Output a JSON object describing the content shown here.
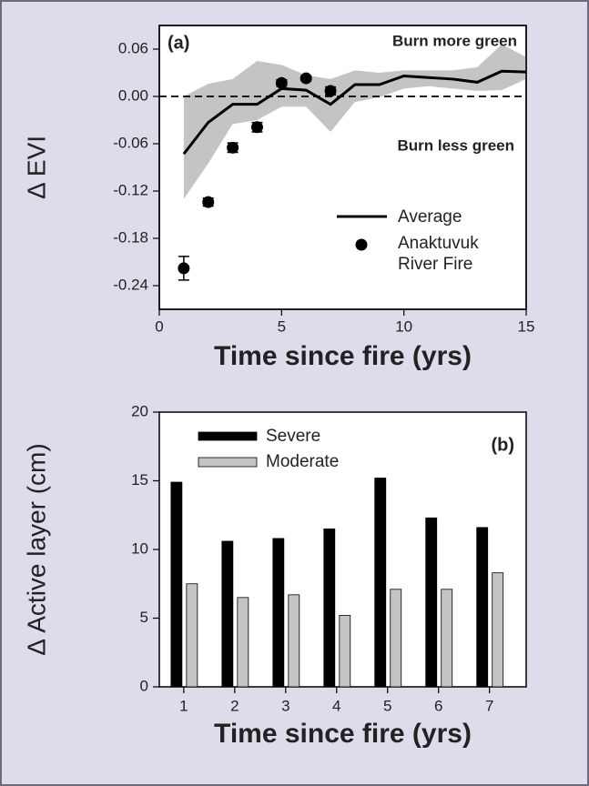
{
  "chart_data": [
    {
      "type": "line",
      "panel_label": "(a)",
      "annotations": [
        "Burn more green",
        "Burn less green"
      ],
      "x_label": "Time since fire (yrs)",
      "y_label": "Δ EVI",
      "xlim": [
        0,
        15
      ],
      "ylim": [
        -0.27,
        0.09
      ],
      "xticks": [
        0,
        5,
        10,
        15
      ],
      "yticks": [
        0.06,
        {
          "value": 0,
          "label": "0.00"
        },
        -0.06,
        -0.12,
        -0.18,
        -0.24
      ],
      "hline": 0,
      "band": {
        "color": "#c4c4c4",
        "x": [
          1,
          2,
          3,
          4,
          5,
          6,
          7,
          8,
          9,
          10,
          11,
          12,
          13,
          14,
          15
        ],
        "lower": [
          -0.13,
          -0.085,
          -0.035,
          -0.03,
          -0.013,
          -0.013,
          -0.045,
          -0.007,
          -0.001,
          0.01,
          0.013,
          0.01,
          0.007,
          0.008,
          0.022
        ],
        "upper": [
          0.0,
          0.016,
          0.022,
          0.045,
          0.04,
          0.027,
          0.022,
          0.033,
          0.03,
          0.033,
          0.033,
          0.033,
          0.037,
          0.066,
          0.05
        ]
      },
      "series": [
        {
          "name": "Average",
          "type": "line",
          "color": "#000000",
          "x": [
            1,
            2,
            3,
            4,
            5,
            6,
            7,
            8,
            9,
            10,
            11,
            12,
            13,
            14,
            15
          ],
          "values": [
            -0.073,
            -0.033,
            -0.01,
            -0.01,
            0.01,
            0.008,
            -0.01,
            0.015,
            0.015,
            0.026,
            0.024,
            0.022,
            0.018,
            0.032,
            0.031
          ]
        },
        {
          "name": "Anaktuvuk River Fire",
          "type": "scatter",
          "color": "#000000",
          "x": [
            1,
            2,
            3,
            4,
            5,
            6,
            7
          ],
          "values": [
            -0.218,
            -0.134,
            -0.065,
            -0.039,
            0.017,
            0.023,
            0.007
          ],
          "errors": [
            0.015,
            0.005,
            0.006,
            0.006,
            0.004,
            0.003,
            0.005
          ]
        }
      ]
    },
    {
      "type": "bar",
      "panel_label": "(b)",
      "x_label": "Time since fire (yrs)",
      "y_label": "Δ Active layer (cm)",
      "categories": [
        "1",
        "2",
        "3",
        "4",
        "5",
        "6",
        "7"
      ],
      "ylim": [
        0,
        20
      ],
      "yticks": [
        0,
        5,
        10,
        15,
        20
      ],
      "series": [
        {
          "name": "Severe",
          "color": "#000000",
          "values": [
            14.9,
            10.6,
            10.8,
            11.5,
            15.2,
            12.3,
            11.6
          ]
        },
        {
          "name": "Moderate",
          "color": "#c4c4c4",
          "values": [
            7.5,
            6.5,
            6.7,
            5.2,
            7.1,
            7.1,
            8.3
          ]
        }
      ]
    }
  ]
}
